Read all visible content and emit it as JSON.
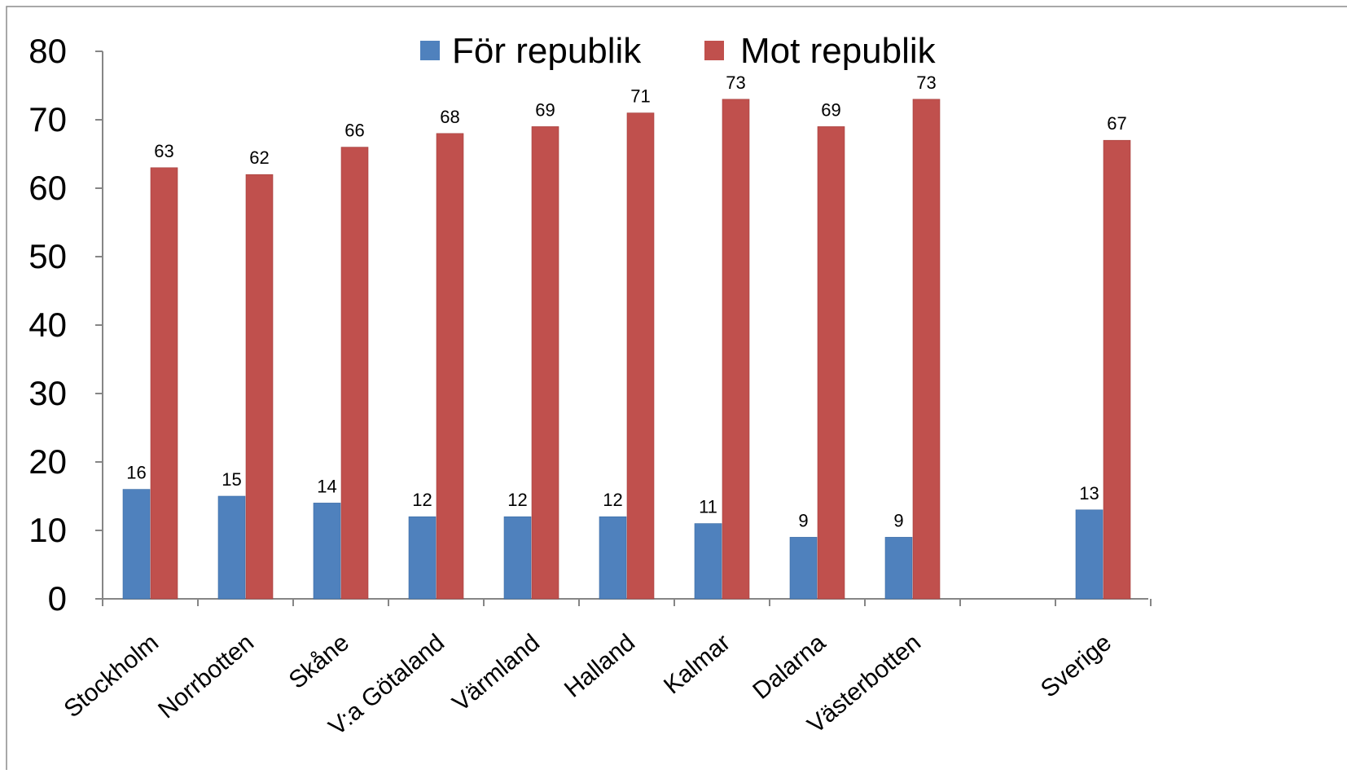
{
  "chart_data": {
    "type": "bar",
    "categories": [
      "Stockholm",
      "Norrbotten",
      "Skåne",
      "V:a Götaland",
      "Värmland",
      "Halland",
      "Kalmar",
      "Dalarna",
      "Västerbotten",
      "",
      "Sverige"
    ],
    "series": [
      {
        "name": "För republik",
        "color": "#4F81BD",
        "values": [
          16,
          15,
          14,
          12,
          12,
          12,
          11,
          9,
          9,
          null,
          13
        ]
      },
      {
        "name": "Mot republik",
        "color": "#C0504D",
        "values": [
          63,
          62,
          66,
          68,
          69,
          71,
          73,
          69,
          73,
          null,
          67
        ]
      }
    ],
    "ylim": [
      0,
      80
    ],
    "yticks": [
      "0",
      "10",
      "20",
      "30",
      "40",
      "50",
      "60",
      "70",
      "80"
    ],
    "title": "",
    "xlabel": "",
    "ylabel": "",
    "grid": false,
    "legend_position": "top",
    "data_labels": true
  }
}
